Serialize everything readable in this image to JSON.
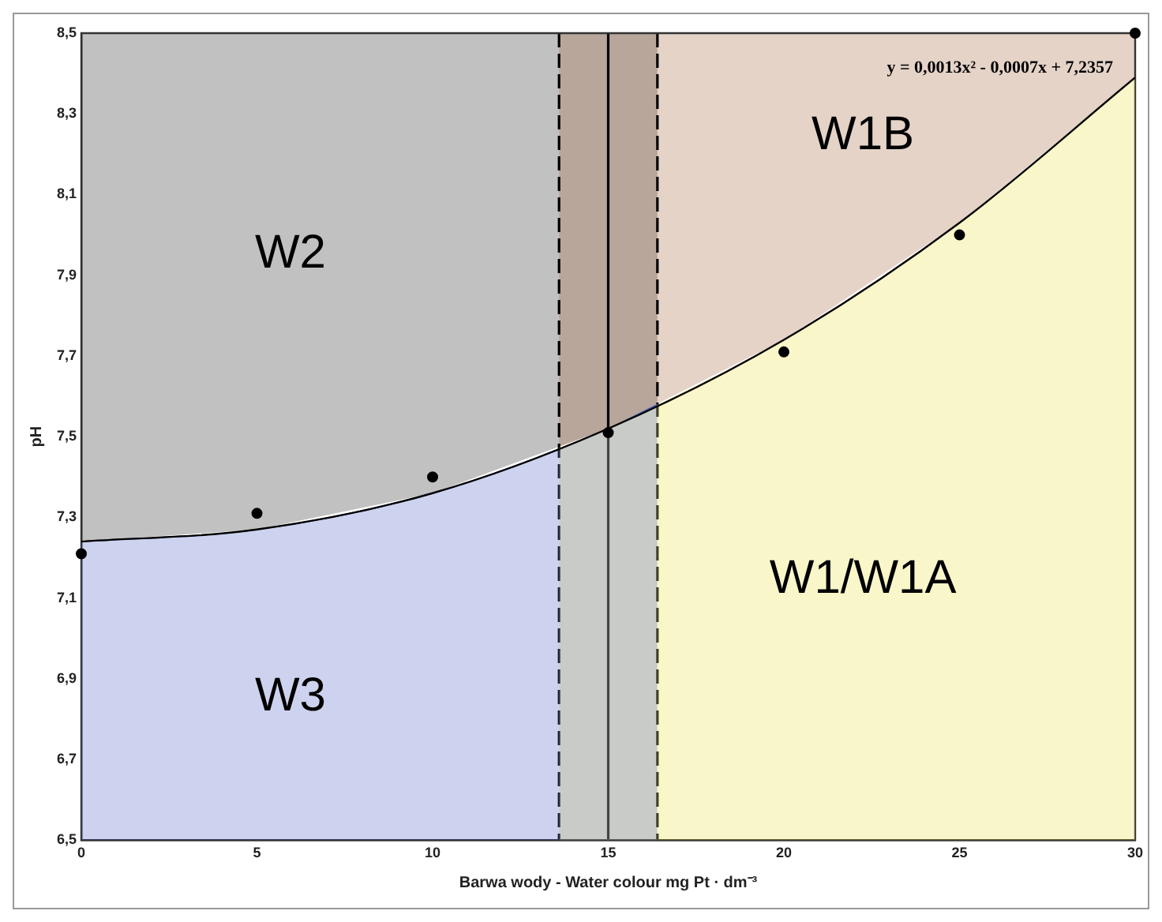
{
  "chart_data": {
    "type": "scatter",
    "xlabel": "Barwa wody - Water colour mg Pt · dm⁻³",
    "ylabel": "pH",
    "xlim": [
      0,
      30
    ],
    "xticks": [
      0,
      5,
      10,
      15,
      20,
      25,
      30
    ],
    "ylim": [
      6.5,
      8.5
    ],
    "yticks": [
      {
        "value": 6.5,
        "label": "6,5"
      },
      {
        "value": 6.7,
        "label": "6,7"
      },
      {
        "value": 6.9,
        "label": "6,9"
      },
      {
        "value": 7.1,
        "label": "7,1"
      },
      {
        "value": 7.3,
        "label": "7,3"
      },
      {
        "value": 7.5,
        "label": "7,5"
      },
      {
        "value": 7.7,
        "label": "7,7"
      },
      {
        "value": 7.9,
        "label": "7,9"
      },
      {
        "value": 8.1,
        "label": "8,1"
      },
      {
        "value": 8.3,
        "label": "8,3"
      },
      {
        "value": 8.5,
        "label": "8,5"
      }
    ],
    "series": [
      {
        "type": "area",
        "name": "W3",
        "color": "#4a5fc1",
        "marker": "none",
        "x": [
          0,
          5,
          10,
          15,
          16.4
        ],
        "values": [
          7.24,
          7.27,
          7.36,
          7.52,
          7.58
        ]
      },
      {
        "type": "area",
        "name": "W1/W1A",
        "color": "#e8e040",
        "marker": "none",
        "x": [
          13.6,
          15,
          20,
          25,
          30
        ],
        "values": [
          7.47,
          7.52,
          7.74,
          8.03,
          8.39
        ]
      },
      {
        "color": "#000000",
        "marker": "circle",
        "x": [
          0,
          5,
          10,
          15,
          20,
          25,
          30
        ],
        "values": [
          7.21,
          7.31,
          7.4,
          7.51,
          7.71,
          8.0,
          8.5
        ]
      },
      {
        "type": "line",
        "color": "#000000",
        "marker": "none",
        "x": [
          0,
          5,
          10,
          15,
          20,
          25,
          30
        ],
        "values": [
          7.24,
          7.27,
          7.36,
          7.52,
          7.74,
          8.03,
          8.39
        ]
      }
    ],
    "bands": [
      {
        "axis": "x",
        "from": 0,
        "to": 16.4,
        "label": "W2",
        "color": "#222222"
      },
      {
        "axis": "x",
        "from": 13.6,
        "to": 30,
        "label": "W1B",
        "color": "#a0603a"
      }
    ],
    "ref_lines": [
      {
        "axis": "x",
        "value": 13.6,
        "color": "#000000",
        "line_style": "dashed"
      },
      {
        "axis": "x",
        "value": 15,
        "color": "#000000",
        "line_style": "solid"
      },
      {
        "axis": "x",
        "value": 16.4,
        "color": "#000000",
        "line_style": "dashed"
      }
    ],
    "annotations": [
      "y = 0,0013x² - 0,0007x + 7,2357"
    ],
    "grid": false,
    "legend": false
  }
}
